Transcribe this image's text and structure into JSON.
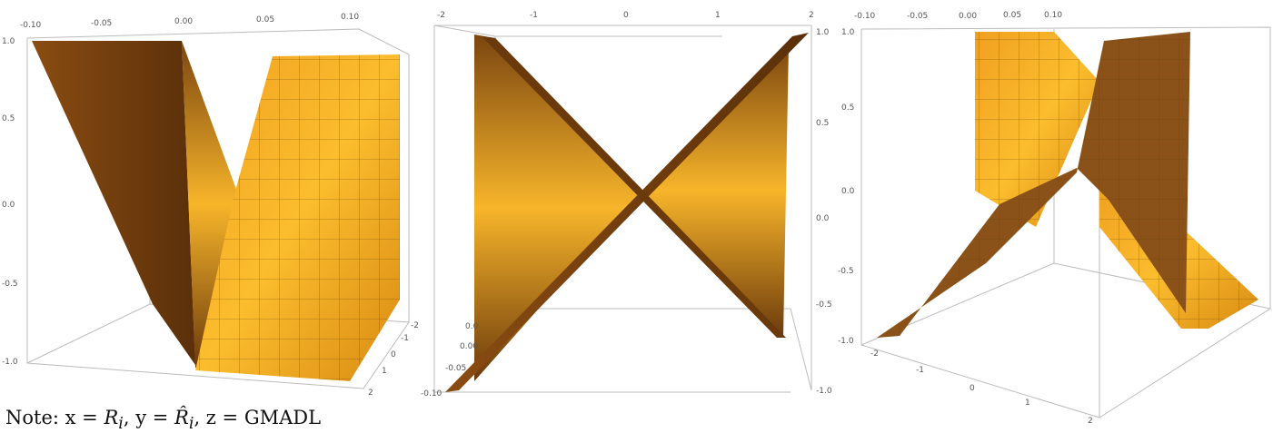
{
  "note": {
    "prefix": "Note: x = ",
    "x_var": "R",
    "x_sub": "i",
    "mid1": ", y = ",
    "y_var": "R̂",
    "y_sub": "i",
    "mid2": ", z = GMADL"
  },
  "colors": {
    "surface_light": "#f6a623",
    "surface_dark": "#6b3a0c",
    "box": "#bbbbbb"
  },
  "chart_data": [
    {
      "type": "surface",
      "x_ticks": [
        "-0.10",
        "-0.05",
        "0.00",
        "0.05",
        "0.10"
      ],
      "y_ticks": [
        "-2",
        "-1",
        "0",
        "1",
        "2"
      ],
      "z_ticks": [
        "1.0",
        "0.5",
        "0.0",
        "-0.5",
        "-1.0"
      ],
      "xlim": [
        -0.1,
        0.1
      ],
      "ylim": [
        -2,
        2
      ],
      "zlim": [
        -1,
        1
      ]
    },
    {
      "type": "surface",
      "x_ticks": [
        "-2",
        "-1",
        "0",
        "1",
        "2"
      ],
      "y_ticks": [
        "0.0",
        "0.00",
        "-0.05",
        "-0.10"
      ],
      "z_ticks": [
        "1.0",
        "0.5",
        "0.0",
        "-0.5",
        "-1.0"
      ],
      "xlim": [
        -2,
        2
      ],
      "ylim": [
        -0.1,
        0.1
      ],
      "zlim": [
        -1,
        1
      ]
    },
    {
      "type": "surface",
      "x_ticks": [
        "-0.10",
        "-0.05",
        "0.00",
        "0.05",
        "0.10"
      ],
      "y_ticks": [
        "-2",
        "-1",
        "0",
        "1",
        "2"
      ],
      "z_ticks": [
        "1.0",
        "0.5",
        "0.0",
        "-0.5",
        "-1.0"
      ],
      "xlim": [
        -0.1,
        0.1
      ],
      "ylim": [
        -2,
        2
      ],
      "zlim": [
        -1,
        1
      ]
    }
  ]
}
